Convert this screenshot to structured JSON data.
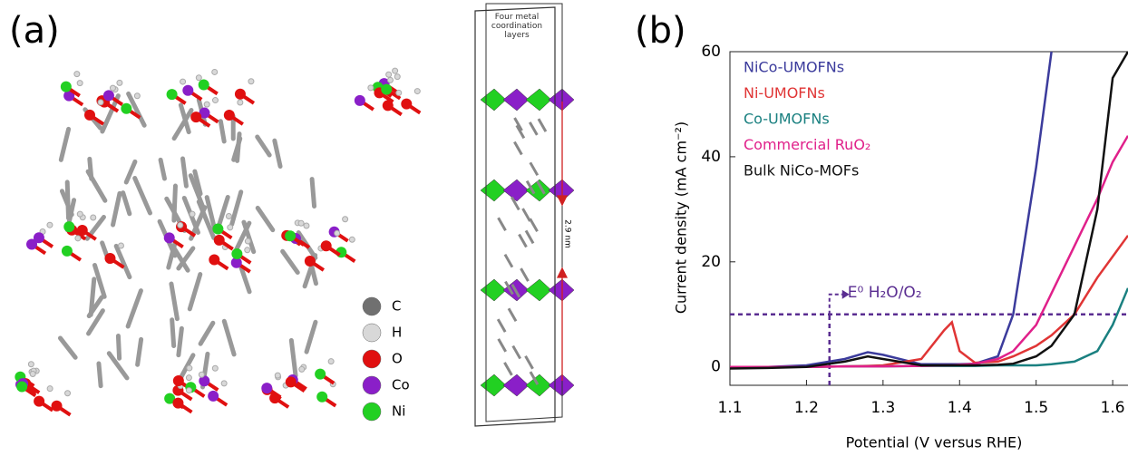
{
  "panel_a": {
    "label": "(a)",
    "box_label": "Four metal coordination layers",
    "spacing_label": "2.9 nm",
    "legend": [
      {
        "name": "C",
        "color": "#707070"
      },
      {
        "name": "H",
        "color": "#d8d8d8"
      },
      {
        "name": "O",
        "color": "#e01010"
      },
      {
        "name": "Co",
        "color": "#8a1fc8"
      },
      {
        "name": "Ni",
        "color": "#22d022"
      }
    ]
  },
  "chart_data": {
    "type": "line",
    "panel_label": "(b)",
    "x_label": "Potential (V versus RHE)",
    "y_label": "Current density (mA cm⁻²)",
    "annotation": "E⁰ H₂O/O₂",
    "hline": 10,
    "vline": 1.23,
    "xlim": [
      1.1,
      1.62
    ],
    "ylim": [
      -3.5,
      60
    ],
    "xticks": [
      1.1,
      1.2,
      1.3,
      1.4,
      1.5,
      1.6
    ],
    "yticks": [
      0,
      20,
      40,
      60
    ],
    "x": [
      1.1,
      1.15,
      1.2,
      1.25,
      1.28,
      1.3,
      1.35,
      1.38,
      1.39,
      1.4,
      1.42,
      1.45,
      1.47,
      1.5,
      1.52,
      1.55,
      1.58,
      1.6,
      1.62
    ],
    "series": [
      {
        "name": "NiCo-UMOFNs",
        "color": "#3b3b9c",
        "values": [
          0,
          0,
          0.3,
          1.5,
          2.8,
          2.3,
          0.5,
          0.5,
          0.5,
          0.5,
          0.6,
          2,
          10,
          38,
          60,
          null,
          null,
          null,
          null
        ]
      },
      {
        "name": "Ni-UMOFNs",
        "color": "#e03535",
        "values": [
          0,
          0,
          0,
          0.1,
          0.2,
          0.3,
          1.5,
          7,
          8.5,
          3,
          0.8,
          1,
          2,
          4,
          6,
          10,
          17,
          21,
          25
        ]
      },
      {
        "name": "Co-UMOFNs",
        "color": "#1a8080",
        "values": [
          0,
          0,
          0,
          0.1,
          0.1,
          0.1,
          0.2,
          0.2,
          0.2,
          0.2,
          0.2,
          0.3,
          0.3,
          0.3,
          0.5,
          1,
          3,
          8,
          15
        ]
      },
      {
        "name": "Commercial RuO₂",
        "color": "#e0208a",
        "values": [
          0,
          0,
          0,
          0.1,
          0.1,
          0.1,
          0.2,
          0.3,
          0.3,
          0.4,
          0.6,
          1.5,
          3,
          8,
          14,
          23,
          32,
          39,
          44
        ]
      },
      {
        "name": "Bulk NiCo-MOFs",
        "color": "#111111",
        "values": [
          -0.3,
          -0.2,
          0,
          1,
          2,
          1.5,
          0.3,
          0.3,
          0.3,
          0.3,
          0.3,
          0.4,
          0.6,
          2,
          4,
          10,
          30,
          55,
          60
        ]
      }
    ]
  }
}
